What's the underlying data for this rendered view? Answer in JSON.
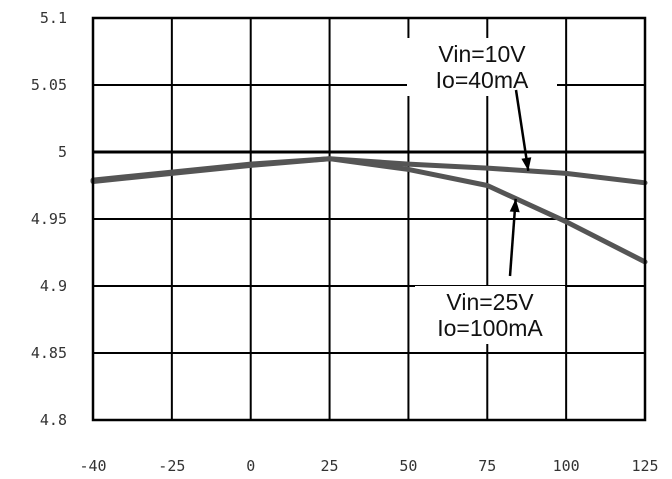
{
  "chart_data": {
    "type": "line",
    "title": "",
    "xlabel": "",
    "ylabel": "",
    "xlim": [
      -40,
      125
    ],
    "ylim": [
      4.8,
      5.1
    ],
    "x_ticks": [
      -40,
      -25,
      0,
      25,
      50,
      75,
      100,
      125
    ],
    "x_tick_labels": [
      "-40",
      "-25",
      "0",
      "25",
      "50",
      "75",
      "100",
      "125"
    ],
    "y_ticks": [
      4.8,
      4.85,
      4.9,
      4.95,
      5.0,
      5.05,
      5.1
    ],
    "y_tick_labels": [
      "4.8",
      "4.85",
      "4.9",
      "4.95",
      "5",
      "5.05",
      "5.1"
    ],
    "grid": true,
    "reference_line": 5.0,
    "series": [
      {
        "x": [
          -40,
          -25,
          0,
          25,
          50,
          75,
          100,
          125
        ],
        "y": [
          4.979,
          4.985,
          4.991,
          4.995,
          4.991,
          4.988,
          4.984,
          4.977
        ]
      },
      {
        "x": [
          -40,
          -25,
          0,
          25,
          50,
          75,
          100,
          125
        ],
        "y": [
          4.978,
          4.984,
          4.99,
          4.995,
          4.987,
          4.975,
          4.948,
          4.918
        ]
      }
    ],
    "annotations": [
      {
        "lines": [
          "Vin=10V",
          "Io=40mA"
        ],
        "points_to_series": 0,
        "x": 88,
        "y": 4.986
      },
      {
        "lines": [
          "Vin=25V",
          "Io=100mA"
        ],
        "points_to_series": 1,
        "x": 84,
        "y": 4.965
      }
    ]
  },
  "colors": {
    "background": "#ffffff",
    "grid": "#000000",
    "series": [
      "#555555",
      "#555555"
    ]
  }
}
